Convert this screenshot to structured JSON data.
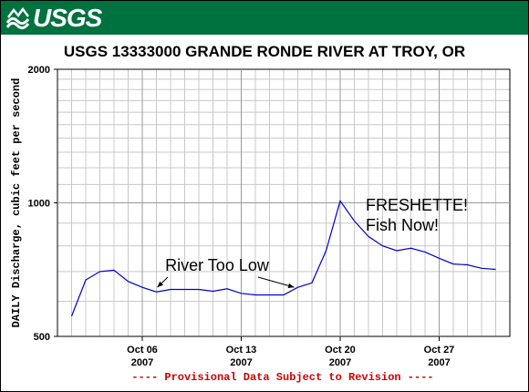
{
  "header": {
    "logo_text": "USGS",
    "banner_color": "#00723f"
  },
  "chart_data": {
    "type": "line",
    "title": "USGS 13333000 GRANDE RONDE RIVER AT TROY, OR",
    "ylabel": "DAILY Discharge, cubic feet per second",
    "xlabel": "",
    "ylim": [
      500,
      2000
    ],
    "y_scale": "log",
    "y_ticks": [
      "500",
      "1000",
      "2000"
    ],
    "x_ticks": [
      {
        "date": "2007-10-06",
        "line1": "Oct 06",
        "line2": "2007"
      },
      {
        "date": "2007-10-13",
        "line1": "Oct 13",
        "line2": "2007"
      },
      {
        "date": "2007-10-20",
        "line1": "Oct 20",
        "line2": "2007"
      },
      {
        "date": "2007-10-27",
        "line1": "Oct 27",
        "line2": "2007"
      }
    ],
    "xlim": [
      "2007-09-30",
      "2007-11-01"
    ],
    "grid": true,
    "series_color": "#0000cc",
    "series": [
      {
        "dates": [
          "2007-10-01",
          "2007-10-02",
          "2007-10-03",
          "2007-10-04",
          "2007-10-05",
          "2007-10-06",
          "2007-10-07",
          "2007-10-08",
          "2007-10-09",
          "2007-10-10",
          "2007-10-11",
          "2007-10-12",
          "2007-10-13",
          "2007-10-14",
          "2007-10-15",
          "2007-10-16",
          "2007-10-17",
          "2007-10-18",
          "2007-10-19",
          "2007-10-20",
          "2007-10-21",
          "2007-10-22",
          "2007-10-23",
          "2007-10-24",
          "2007-10-25",
          "2007-10-26",
          "2007-10-27",
          "2007-10-28",
          "2007-10-29",
          "2007-10-30",
          "2007-10-31"
        ],
        "values": [
          555,
          670,
          700,
          705,
          665,
          645,
          630,
          638,
          638,
          638,
          632,
          640,
          625,
          620,
          620,
          620,
          645,
          660,
          780,
          1010,
          910,
          840,
          800,
          780,
          790,
          775,
          750,
          728,
          725,
          712,
          708
        ]
      }
    ],
    "annotations": [
      {
        "text": "River Too Low",
        "date": "2007-10-07.5",
        "value": 630
      },
      {
        "text": "FRESHETTE!",
        "date": "2007-10-23",
        "value": 1000
      },
      {
        "text": "Fish Now!",
        "date": "2007-10-23",
        "value": 1000
      }
    ],
    "footer_note": "---- Provisional Data Subject to Revision ----",
    "footer_color": "#cc0000"
  }
}
